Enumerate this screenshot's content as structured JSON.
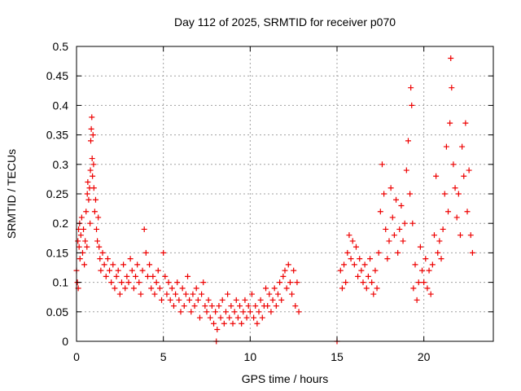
{
  "chart_data": {
    "type": "scatter",
    "title": "Day 112 of 2025, SRMTID for receiver p070",
    "xlabel": "GPS time / hours",
    "ylabel": "SRMTID / TECUs",
    "xlim": [
      0,
      24
    ],
    "ylim": [
      0,
      0.5
    ],
    "x_ticks": [
      0,
      5,
      10,
      15,
      20
    ],
    "y_ticks": [
      0,
      0.05,
      0.1,
      0.15,
      0.2,
      0.25,
      0.3,
      0.35,
      0.4,
      0.45,
      0.5
    ],
    "grid": true,
    "marker": "+",
    "series": [
      {
        "name": "SRMTID",
        "color": "#ee0000",
        "points": [
          [
            0.0,
            0.12
          ],
          [
            0.05,
            0.1
          ],
          [
            0.08,
            0.17
          ],
          [
            0.1,
            0.09
          ],
          [
            0.12,
            0.19
          ],
          [
            0.15,
            0.16
          ],
          [
            0.18,
            0.2
          ],
          [
            0.2,
            0.14
          ],
          [
            0.25,
            0.18
          ],
          [
            0.3,
            0.21
          ],
          [
            0.35,
            0.15
          ],
          [
            0.4,
            0.19
          ],
          [
            0.45,
            0.13
          ],
          [
            0.5,
            0.17
          ],
          [
            0.55,
            0.22
          ],
          [
            0.6,
            0.16
          ],
          [
            0.62,
            0.25
          ],
          [
            0.65,
            0.27
          ],
          [
            0.7,
            0.24
          ],
          [
            0.75,
            0.26
          ],
          [
            0.78,
            0.2
          ],
          [
            0.8,
            0.29
          ],
          [
            0.82,
            0.34
          ],
          [
            0.85,
            0.36
          ],
          [
            0.88,
            0.38
          ],
          [
            0.9,
            0.31
          ],
          [
            0.92,
            0.28
          ],
          [
            0.95,
            0.35
          ],
          [
            0.98,
            0.3
          ],
          [
            1.0,
            0.26
          ],
          [
            1.05,
            0.22
          ],
          [
            1.1,
            0.24
          ],
          [
            1.15,
            0.19
          ],
          [
            1.2,
            0.17
          ],
          [
            1.25,
            0.21
          ],
          [
            1.3,
            0.16
          ],
          [
            1.35,
            0.14
          ],
          [
            1.4,
            0.12
          ],
          [
            1.5,
            0.15
          ],
          [
            1.6,
            0.13
          ],
          [
            1.7,
            0.11
          ],
          [
            1.8,
            0.14
          ],
          [
            1.9,
            0.12
          ],
          [
            2.0,
            0.1
          ],
          [
            2.1,
            0.13
          ],
          [
            2.2,
            0.09
          ],
          [
            2.3,
            0.11
          ],
          [
            2.4,
            0.12
          ],
          [
            2.5,
            0.08
          ],
          [
            2.6,
            0.1
          ],
          [
            2.7,
            0.13
          ],
          [
            2.8,
            0.09
          ],
          [
            2.9,
            0.11
          ],
          [
            3.0,
            0.1
          ],
          [
            3.1,
            0.14
          ],
          [
            3.2,
            0.12
          ],
          [
            3.3,
            0.09
          ],
          [
            3.4,
            0.11
          ],
          [
            3.5,
            0.13
          ],
          [
            3.6,
            0.1
          ],
          [
            3.7,
            0.08
          ],
          [
            3.8,
            0.12
          ],
          [
            3.9,
            0.19
          ],
          [
            4.0,
            0.15
          ],
          [
            4.1,
            0.11
          ],
          [
            4.2,
            0.13
          ],
          [
            4.3,
            0.09
          ],
          [
            4.4,
            0.11
          ],
          [
            4.5,
            0.08
          ],
          [
            4.6,
            0.1
          ],
          [
            4.7,
            0.12
          ],
          [
            4.8,
            0.09
          ],
          [
            4.9,
            0.07
          ],
          [
            5.0,
            0.15
          ],
          [
            5.1,
            0.11
          ],
          [
            5.2,
            0.08
          ],
          [
            5.3,
            0.1
          ],
          [
            5.4,
            0.07
          ],
          [
            5.5,
            0.09
          ],
          [
            5.6,
            0.06
          ],
          [
            5.7,
            0.08
          ],
          [
            5.8,
            0.1
          ],
          [
            5.9,
            0.07
          ],
          [
            6.0,
            0.05
          ],
          [
            6.1,
            0.09
          ],
          [
            6.2,
            0.06
          ],
          [
            6.3,
            0.08
          ],
          [
            6.4,
            0.11
          ],
          [
            6.5,
            0.07
          ],
          [
            6.6,
            0.05
          ],
          [
            6.7,
            0.08
          ],
          [
            6.8,
            0.06
          ],
          [
            6.9,
            0.09
          ],
          [
            7.0,
            0.07
          ],
          [
            7.1,
            0.04
          ],
          [
            7.2,
            0.08
          ],
          [
            7.3,
            0.1
          ],
          [
            7.4,
            0.06
          ],
          [
            7.5,
            0.05
          ],
          [
            7.6,
            0.07
          ],
          [
            7.7,
            0.04
          ],
          [
            7.8,
            0.06
          ],
          [
            7.9,
            0.03
          ],
          [
            8.0,
            0.05
          ],
          [
            8.05,
            0.0
          ],
          [
            8.1,
            0.02
          ],
          [
            8.2,
            0.06
          ],
          [
            8.3,
            0.04
          ],
          [
            8.4,
            0.07
          ],
          [
            8.5,
            0.03
          ],
          [
            8.6,
            0.05
          ],
          [
            8.7,
            0.08
          ],
          [
            8.8,
            0.04
          ],
          [
            8.9,
            0.06
          ],
          [
            9.0,
            0.03
          ],
          [
            9.1,
            0.05
          ],
          [
            9.2,
            0.07
          ],
          [
            9.3,
            0.04
          ],
          [
            9.4,
            0.06
          ],
          [
            9.5,
            0.03
          ],
          [
            9.6,
            0.05
          ],
          [
            9.7,
            0.07
          ],
          [
            9.8,
            0.04
          ],
          [
            9.9,
            0.06
          ],
          [
            10.0,
            0.05
          ],
          [
            10.1,
            0.08
          ],
          [
            10.2,
            0.04
          ],
          [
            10.3,
            0.06
          ],
          [
            10.4,
            0.03
          ],
          [
            10.5,
            0.05
          ],
          [
            10.6,
            0.07
          ],
          [
            10.7,
            0.04
          ],
          [
            10.8,
            0.06
          ],
          [
            10.9,
            0.09
          ],
          [
            11.0,
            0.06
          ],
          [
            11.1,
            0.08
          ],
          [
            11.2,
            0.05
          ],
          [
            11.3,
            0.07
          ],
          [
            11.4,
            0.09
          ],
          [
            11.5,
            0.06
          ],
          [
            11.6,
            0.08
          ],
          [
            11.7,
            0.1
          ],
          [
            11.8,
            0.07
          ],
          [
            11.9,
            0.11
          ],
          [
            12.0,
            0.12
          ],
          [
            12.1,
            0.09
          ],
          [
            12.2,
            0.13
          ],
          [
            12.3,
            0.1
          ],
          [
            12.4,
            0.08
          ],
          [
            12.5,
            0.12
          ],
          [
            12.6,
            0.06
          ],
          [
            12.7,
            0.1
          ],
          [
            12.8,
            0.05
          ],
          [
            15.0,
            0.0
          ],
          [
            15.2,
            0.12
          ],
          [
            15.3,
            0.09
          ],
          [
            15.4,
            0.13
          ],
          [
            15.5,
            0.1
          ],
          [
            15.6,
            0.15
          ],
          [
            15.7,
            0.18
          ],
          [
            15.8,
            0.14
          ],
          [
            15.9,
            0.17
          ],
          [
            16.0,
            0.13
          ],
          [
            16.1,
            0.16
          ],
          [
            16.2,
            0.11
          ],
          [
            16.3,
            0.14
          ],
          [
            16.4,
            0.12
          ],
          [
            16.5,
            0.1
          ],
          [
            16.6,
            0.13
          ],
          [
            16.7,
            0.09
          ],
          [
            16.8,
            0.11
          ],
          [
            16.9,
            0.14
          ],
          [
            17.0,
            0.1
          ],
          [
            17.1,
            0.08
          ],
          [
            17.2,
            0.12
          ],
          [
            17.3,
            0.09
          ],
          [
            17.4,
            0.15
          ],
          [
            17.5,
            0.22
          ],
          [
            17.6,
            0.3
          ],
          [
            17.7,
            0.25
          ],
          [
            17.8,
            0.19
          ],
          [
            17.9,
            0.14
          ],
          [
            18.0,
            0.17
          ],
          [
            18.1,
            0.26
          ],
          [
            18.2,
            0.21
          ],
          [
            18.3,
            0.18
          ],
          [
            18.4,
            0.24
          ],
          [
            18.5,
            0.15
          ],
          [
            18.6,
            0.19
          ],
          [
            18.7,
            0.23
          ],
          [
            18.8,
            0.17
          ],
          [
            18.9,
            0.2
          ],
          [
            19.0,
            0.29
          ],
          [
            19.1,
            0.34
          ],
          [
            19.2,
            0.25
          ],
          [
            19.25,
            0.43
          ],
          [
            19.3,
            0.4
          ],
          [
            19.35,
            0.2
          ],
          [
            19.4,
            0.09
          ],
          [
            19.5,
            0.13
          ],
          [
            19.6,
            0.07
          ],
          [
            19.7,
            0.1
          ],
          [
            19.8,
            0.16
          ],
          [
            19.9,
            0.12
          ],
          [
            20.0,
            0.1
          ],
          [
            20.1,
            0.14
          ],
          [
            20.2,
            0.09
          ],
          [
            20.3,
            0.12
          ],
          [
            20.4,
            0.08
          ],
          [
            20.5,
            0.13
          ],
          [
            20.6,
            0.18
          ],
          [
            20.7,
            0.28
          ],
          [
            20.8,
            0.15
          ],
          [
            20.9,
            0.17
          ],
          [
            21.0,
            0.14
          ],
          [
            21.1,
            0.19
          ],
          [
            21.2,
            0.25
          ],
          [
            21.3,
            0.33
          ],
          [
            21.4,
            0.22
          ],
          [
            21.5,
            0.37
          ],
          [
            21.55,
            0.48
          ],
          [
            21.6,
            0.43
          ],
          [
            21.7,
            0.3
          ],
          [
            21.8,
            0.26
          ],
          [
            21.9,
            0.21
          ],
          [
            22.0,
            0.25
          ],
          [
            22.1,
            0.18
          ],
          [
            22.2,
            0.33
          ],
          [
            22.3,
            0.28
          ],
          [
            22.4,
            0.37
          ],
          [
            22.5,
            0.22
          ],
          [
            22.6,
            0.29
          ],
          [
            22.7,
            0.18
          ],
          [
            22.8,
            0.15
          ]
        ]
      }
    ]
  }
}
